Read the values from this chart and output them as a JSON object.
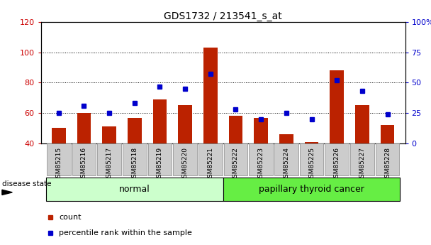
{
  "title": "GDS1732 / 213541_s_at",
  "samples": [
    "GSM85215",
    "GSM85216",
    "GSM85217",
    "GSM85218",
    "GSM85219",
    "GSM85220",
    "GSM85221",
    "GSM85222",
    "GSM85223",
    "GSM85224",
    "GSM85225",
    "GSM85226",
    "GSM85227",
    "GSM85228"
  ],
  "count_values": [
    50,
    60,
    51,
    57,
    69,
    65,
    103,
    58,
    57,
    46,
    41,
    88,
    65,
    52
  ],
  "percentile_values": [
    25,
    31,
    25,
    33,
    47,
    45,
    57,
    28,
    20,
    25,
    20,
    52,
    43,
    24
  ],
  "ylim_left": [
    40,
    120
  ],
  "ylim_right": [
    0,
    100
  ],
  "yticks_left": [
    40,
    60,
    80,
    100,
    120
  ],
  "yticks_right": [
    0,
    25,
    50,
    75,
    100
  ],
  "ytick_labels_right": [
    "0",
    "25",
    "50",
    "75",
    "100%"
  ],
  "bar_color": "#bb2200",
  "dot_color": "#0000cc",
  "group_labels": [
    "normal",
    "papillary thyroid cancer"
  ],
  "group_ranges": [
    [
      0,
      6
    ],
    [
      7,
      13
    ]
  ],
  "group_color_normal": "#ccffcc",
  "group_color_cancer": "#66ee44",
  "disease_state_label": "disease state",
  "legend_count_label": "count",
  "legend_percentile_label": "percentile rank within the sample",
  "title_fontsize": 10,
  "axis_color_left": "#cc0000",
  "axis_color_right": "#0000cc",
  "background_color": "#ffffff",
  "grid_color": "#000000",
  "bar_bottom": 40,
  "xtick_bg": "#cccccc",
  "xtick_edge": "#888888"
}
